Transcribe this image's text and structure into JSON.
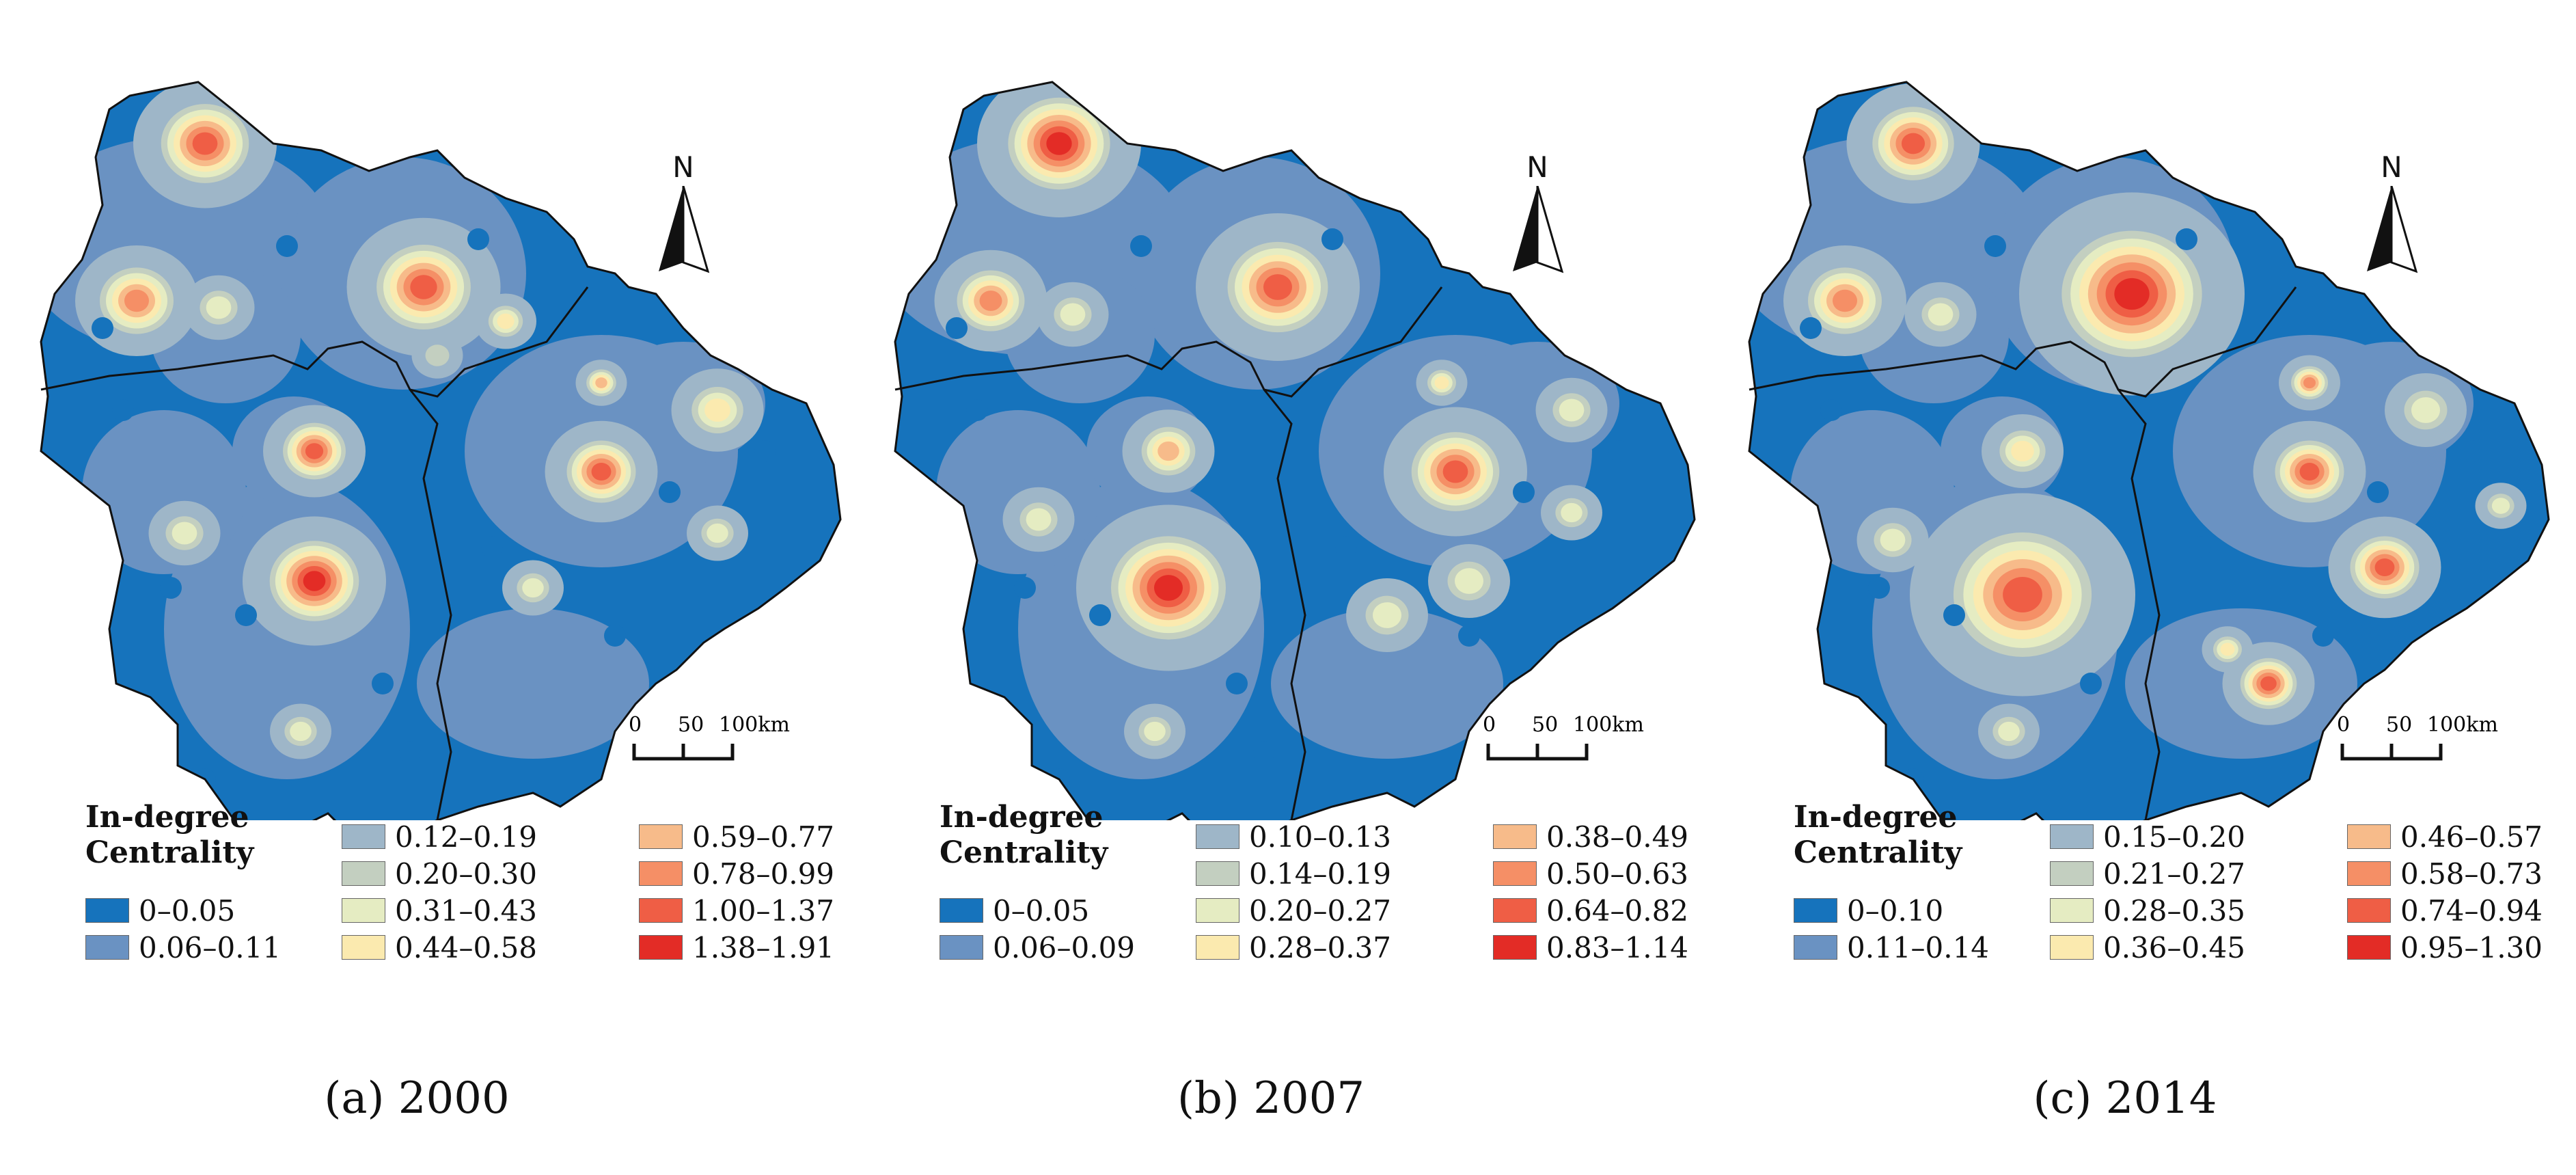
{
  "legend_title_line1": "In-degree",
  "legend_title_line2": "Centrality",
  "north_label": "N",
  "scale_labels": [
    "0",
    "50",
    "100km"
  ],
  "colors": [
    "#1673bc",
    "#6a92c2",
    "#9eb6c8",
    "#c3cfc0",
    "#e5ecc2",
    "#fbeaaf",
    "#f7bb8a",
    "#f58f66",
    "#ef5e45",
    "#e32c26"
  ],
  "panels": [
    {
      "caption": "(a) 2000",
      "classes": [
        "0–0.05",
        "0.06–0.11",
        "0.12–0.19",
        "0.20–0.30",
        "0.31–0.43",
        "0.44–0.58",
        "0.59–0.77",
        "0.78–0.99",
        "1.00–1.37",
        "1.38–1.91"
      ]
    },
    {
      "caption": "(b) 2007",
      "classes": [
        "0–0.05",
        "0.06–0.09",
        "0.10–0.13",
        "0.14–0.19",
        "0.20–0.27",
        "0.28–0.37",
        "0.38–0.49",
        "0.50–0.63",
        "0.64–0.82",
        "0.83–1.14"
      ]
    },
    {
      "caption": "(c) 2014",
      "classes": [
        "0–0.10",
        "0.11–0.14",
        "0.15–0.20",
        "0.21–0.27",
        "0.28–0.35",
        "0.36–0.45",
        "0.46–0.57",
        "0.58–0.73",
        "0.74–0.94",
        "0.95–1.30"
      ]
    }
  ]
}
